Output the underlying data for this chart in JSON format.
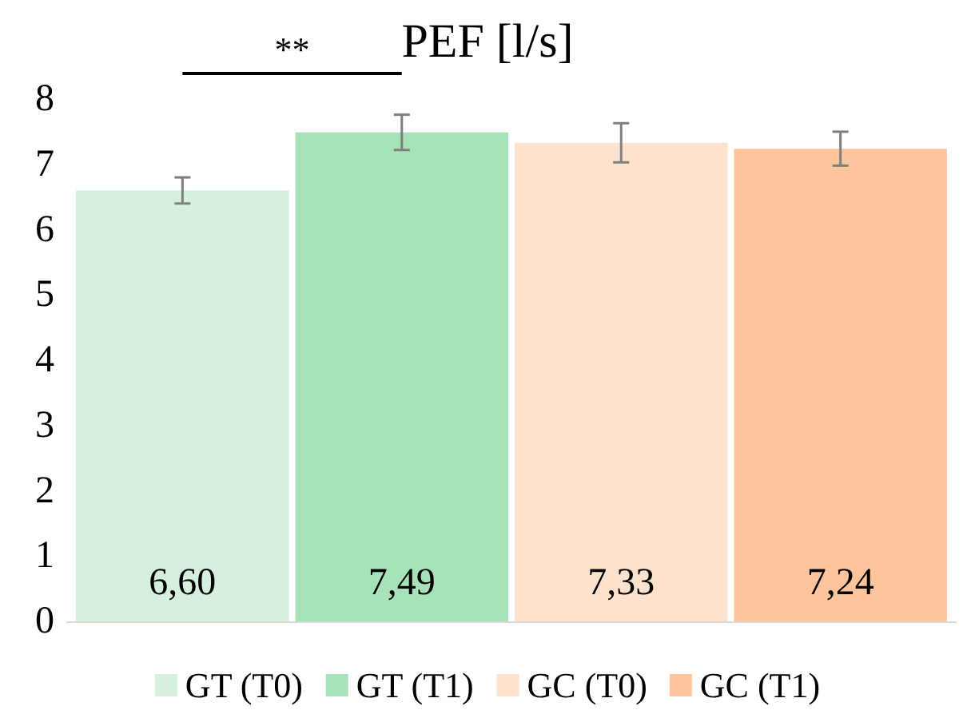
{
  "chart_data": {
    "type": "bar",
    "title": "PEF [l/s]",
    "categories": [
      null
    ],
    "series": [
      {
        "name": "GT (T0)",
        "color": "#d5f0dc",
        "values": [
          6.6
        ],
        "errors": [
          0.2
        ],
        "value_labels": [
          "6,60"
        ]
      },
      {
        "name": "GT (T1)",
        "color": "#a8e2b9",
        "values": [
          7.49
        ],
        "errors": [
          0.27
        ],
        "value_labels": [
          "7,49"
        ]
      },
      {
        "name": "GC (T0)",
        "color": "#fde3cd",
        "values": [
          7.33
        ],
        "errors": [
          0.3
        ],
        "value_labels": [
          "7,33"
        ]
      },
      {
        "name": "GC (T1)",
        "color": "#fdc59c",
        "values": [
          7.24
        ],
        "errors": [
          0.26
        ],
        "value_labels": [
          "7,24"
        ]
      }
    ],
    "ylim": [
      0,
      8
    ],
    "yticks": [
      0,
      1,
      2,
      3,
      4,
      5,
      6,
      7,
      8
    ],
    "grid": false,
    "legend": "bottom",
    "annotations": [
      "**"
    ]
  }
}
